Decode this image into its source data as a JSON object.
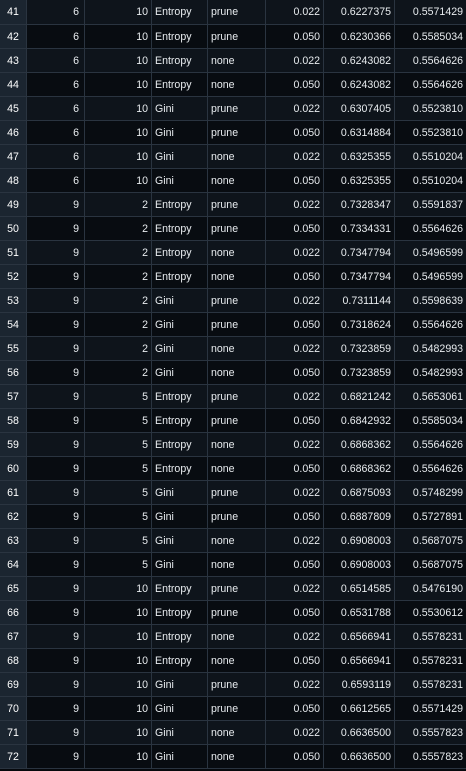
{
  "table": {
    "rows": [
      [
        "41",
        "6",
        "10",
        "Entropy",
        "prune",
        "0.022",
        "0.6227375",
        "0.5571429"
      ],
      [
        "42",
        "6",
        "10",
        "Entropy",
        "prune",
        "0.050",
        "0.6230366",
        "0.5585034"
      ],
      [
        "43",
        "6",
        "10",
        "Entropy",
        "none",
        "0.022",
        "0.6243082",
        "0.5564626"
      ],
      [
        "44",
        "6",
        "10",
        "Entropy",
        "none",
        "0.050",
        "0.6243082",
        "0.5564626"
      ],
      [
        "45",
        "6",
        "10",
        "Gini",
        "prune",
        "0.022",
        "0.6307405",
        "0.5523810"
      ],
      [
        "46",
        "6",
        "10",
        "Gini",
        "prune",
        "0.050",
        "0.6314884",
        "0.5523810"
      ],
      [
        "47",
        "6",
        "10",
        "Gini",
        "none",
        "0.022",
        "0.6325355",
        "0.5510204"
      ],
      [
        "48",
        "6",
        "10",
        "Gini",
        "none",
        "0.050",
        "0.6325355",
        "0.5510204"
      ],
      [
        "49",
        "9",
        "2",
        "Entropy",
        "prune",
        "0.022",
        "0.7328347",
        "0.5591837"
      ],
      [
        "50",
        "9",
        "2",
        "Entropy",
        "prune",
        "0.050",
        "0.7334331",
        "0.5564626"
      ],
      [
        "51",
        "9",
        "2",
        "Entropy",
        "none",
        "0.022",
        "0.7347794",
        "0.5496599"
      ],
      [
        "52",
        "9",
        "2",
        "Entropy",
        "none",
        "0.050",
        "0.7347794",
        "0.5496599"
      ],
      [
        "53",
        "9",
        "2",
        "Gini",
        "prune",
        "0.022",
        "0.7311144",
        "0.5598639"
      ],
      [
        "54",
        "9",
        "2",
        "Gini",
        "prune",
        "0.050",
        "0.7318624",
        "0.5564626"
      ],
      [
        "55",
        "9",
        "2",
        "Gini",
        "none",
        "0.022",
        "0.7323859",
        "0.5482993"
      ],
      [
        "56",
        "9",
        "2",
        "Gini",
        "none",
        "0.050",
        "0.7323859",
        "0.5482993"
      ],
      [
        "57",
        "9",
        "5",
        "Entropy",
        "prune",
        "0.022",
        "0.6821242",
        "0.5653061"
      ],
      [
        "58",
        "9",
        "5",
        "Entropy",
        "prune",
        "0.050",
        "0.6842932",
        "0.5585034"
      ],
      [
        "59",
        "9",
        "5",
        "Entropy",
        "none",
        "0.022",
        "0.6868362",
        "0.5564626"
      ],
      [
        "60",
        "9",
        "5",
        "Entropy",
        "none",
        "0.050",
        "0.6868362",
        "0.5564626"
      ],
      [
        "61",
        "9",
        "5",
        "Gini",
        "prune",
        "0.022",
        "0.6875093",
        "0.5748299"
      ],
      [
        "62",
        "9",
        "5",
        "Gini",
        "prune",
        "0.050",
        "0.6887809",
        "0.5727891"
      ],
      [
        "63",
        "9",
        "5",
        "Gini",
        "none",
        "0.022",
        "0.6908003",
        "0.5687075"
      ],
      [
        "64",
        "9",
        "5",
        "Gini",
        "none",
        "0.050",
        "0.6908003",
        "0.5687075"
      ],
      [
        "65",
        "9",
        "10",
        "Entropy",
        "prune",
        "0.022",
        "0.6514585",
        "0.5476190"
      ],
      [
        "66",
        "9",
        "10",
        "Entropy",
        "prune",
        "0.050",
        "0.6531788",
        "0.5530612"
      ],
      [
        "67",
        "9",
        "10",
        "Entropy",
        "none",
        "0.022",
        "0.6566941",
        "0.5578231"
      ],
      [
        "68",
        "9",
        "10",
        "Entropy",
        "none",
        "0.050",
        "0.6566941",
        "0.5578231"
      ],
      [
        "69",
        "9",
        "10",
        "Gini",
        "prune",
        "0.022",
        "0.6593119",
        "0.5578231"
      ],
      [
        "70",
        "9",
        "10",
        "Gini",
        "prune",
        "0.050",
        "0.6612565",
        "0.5571429"
      ],
      [
        "71",
        "9",
        "10",
        "Gini",
        "none",
        "0.022",
        "0.6636500",
        "0.5557823"
      ],
      [
        "72",
        "9",
        "10",
        "Gini",
        "none",
        "0.050",
        "0.6636500",
        "0.5557823"
      ]
    ]
  },
  "colors": {
    "background": "#06090d",
    "row_index_background": "#1b2530",
    "grid_line": "#2a3440",
    "text": "#e8ecef"
  }
}
